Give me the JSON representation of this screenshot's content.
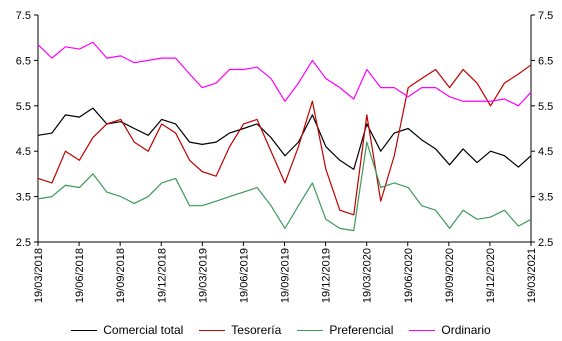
{
  "chart_data": {
    "type": "line",
    "title": "",
    "xlabel": "",
    "ylabel": "",
    "ylim": [
      2.5,
      7.5
    ],
    "y_ticks": [
      "2.5",
      "3.5",
      "4.5",
      "5.5",
      "6.5",
      "7.5"
    ],
    "y2_ticks": [
      "2.5",
      "3.5",
      "4.5",
      "5.5",
      "6.5",
      "7.5"
    ],
    "x_ticks": [
      "19/03/2018",
      "19/06/2018",
      "19/09/2018",
      "19/12/2018",
      "19/03/2019",
      "19/06/2019",
      "19/09/2019",
      "19/12/2019",
      "19/03/2020",
      "19/06/2020",
      "19/09/2020",
      "19/12/2020",
      "19/03/2021"
    ],
    "grid": false,
    "legend_position": "bottom",
    "x": [
      "2018-03-19",
      "2018-04-19",
      "2018-05-19",
      "2018-06-19",
      "2018-07-19",
      "2018-08-19",
      "2018-09-19",
      "2018-10-19",
      "2018-11-19",
      "2018-12-19",
      "2019-01-19",
      "2019-02-19",
      "2019-03-19",
      "2019-04-19",
      "2019-05-19",
      "2019-06-19",
      "2019-07-19",
      "2019-08-19",
      "2019-09-19",
      "2019-10-19",
      "2019-11-19",
      "2019-12-19",
      "2020-01-19",
      "2020-02-19",
      "2020-03-19",
      "2020-04-19",
      "2020-05-19",
      "2020-06-19",
      "2020-07-19",
      "2020-08-19",
      "2020-09-19",
      "2020-10-19",
      "2020-11-19",
      "2020-12-19",
      "2021-01-19",
      "2021-02-19",
      "2021-03-19"
    ],
    "series": [
      {
        "name": "Comercial total",
        "color": "#000000",
        "values": [
          4.85,
          4.9,
          5.3,
          5.25,
          5.45,
          5.1,
          5.15,
          5.0,
          4.85,
          5.2,
          5.1,
          4.7,
          4.65,
          4.7,
          4.9,
          5.0,
          5.1,
          4.8,
          4.4,
          4.7,
          5.3,
          4.6,
          4.3,
          4.1,
          5.1,
          4.5,
          4.9,
          5.0,
          4.75,
          4.55,
          4.2,
          4.55,
          4.25,
          4.5,
          4.4,
          4.15,
          4.4
        ]
      },
      {
        "name": "Tesorería",
        "color": "#c00000",
        "values": [
          3.9,
          3.8,
          4.5,
          4.3,
          4.8,
          5.1,
          5.2,
          4.7,
          4.5,
          5.1,
          4.9,
          4.3,
          4.05,
          3.95,
          4.6,
          5.1,
          5.2,
          4.5,
          3.8,
          4.6,
          5.6,
          4.1,
          3.2,
          3.1,
          5.3,
          3.4,
          4.4,
          5.9,
          6.1,
          6.3,
          5.9,
          6.3,
          6.0,
          5.5,
          6.0,
          6.2,
          6.4
        ]
      },
      {
        "name": "Preferencial",
        "color": "#3d9a5a",
        "values": [
          3.45,
          3.5,
          3.75,
          3.7,
          4.0,
          3.6,
          3.5,
          3.35,
          3.5,
          3.8,
          3.9,
          3.3,
          3.3,
          3.4,
          3.5,
          3.6,
          3.7,
          3.3,
          2.8,
          3.3,
          3.8,
          3.0,
          2.8,
          2.75,
          4.7,
          3.7,
          3.8,
          3.7,
          3.3,
          3.2,
          2.8,
          3.2,
          3.0,
          3.05,
          3.2,
          2.85,
          3.0
        ]
      },
      {
        "name": "Ordinario",
        "color": "#ff00ff",
        "values": [
          6.85,
          6.55,
          6.8,
          6.75,
          6.9,
          6.55,
          6.6,
          6.45,
          6.5,
          6.55,
          6.55,
          6.2,
          5.9,
          6.0,
          6.3,
          6.3,
          6.35,
          6.1,
          5.6,
          6.0,
          6.5,
          6.1,
          5.9,
          5.65,
          6.3,
          5.9,
          5.9,
          5.7,
          5.9,
          5.9,
          5.7,
          5.6,
          5.6,
          5.6,
          5.65,
          5.5,
          5.8
        ]
      }
    ]
  }
}
